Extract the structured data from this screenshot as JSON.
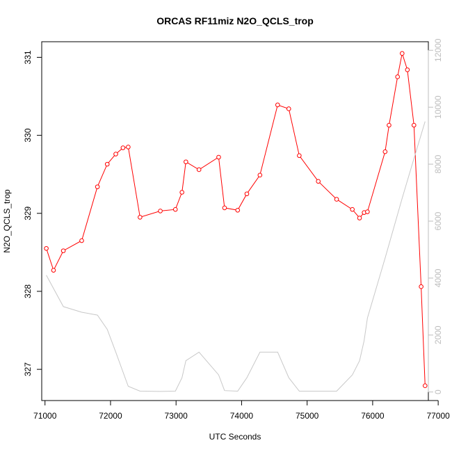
{
  "chart_data": {
    "type": "line",
    "title": "ORCAS RF11miz N2O_QCLS_trop",
    "xlabel": "UTC Seconds",
    "ylabel": "N2O_QCLS_trop",
    "xlim": [
      70950,
      76850
    ],
    "ylim": [
      326.6,
      331.2
    ],
    "y2lim": [
      -300,
      12300
    ],
    "x_ticks": [
      71000,
      72000,
      73000,
      74000,
      75000,
      76000,
      77000
    ],
    "y_ticks": [
      327,
      328,
      329,
      330,
      331
    ],
    "y2_ticks": [
      0,
      2000,
      4000,
      6000,
      8000,
      10000,
      12000
    ],
    "series": [
      {
        "axis": "left",
        "color": "#ff0000",
        "marker": "open-circle",
        "x": [
          71020,
          71130,
          71280,
          71560,
          71800,
          71950,
          72080,
          72190,
          72270,
          72450,
          72760,
          72990,
          73090,
          73150,
          73350,
          73650,
          73740,
          73940,
          74080,
          74280,
          74550,
          74720,
          74880,
          75170,
          75450,
          75690,
          75800,
          75870,
          75920,
          76190,
          76250,
          76380,
          76450,
          76530,
          76630,
          76740,
          76800
        ],
        "values": [
          328.55,
          328.27,
          328.52,
          328.65,
          329.34,
          329.63,
          329.76,
          329.84,
          329.85,
          328.95,
          329.03,
          329.05,
          329.27,
          329.66,
          329.56,
          329.72,
          329.07,
          329.04,
          329.25,
          329.49,
          330.39,
          330.34,
          329.74,
          329.41,
          329.18,
          329.05,
          328.94,
          329.01,
          329.02,
          329.79,
          330.13,
          330.75,
          331.05,
          330.84,
          330.13,
          328.06,
          326.79
        ]
      },
      {
        "axis": "right",
        "color": "#c8c8c8",
        "marker": "none",
        "x": [
          71020,
          71280,
          71560,
          71800,
          71950,
          72080,
          72190,
          72270,
          72450,
          72760,
          72990,
          73090,
          73150,
          73350,
          73650,
          73740,
          73940,
          74080,
          74280,
          74550,
          74720,
          74880,
          75170,
          75450,
          75690,
          75800,
          75870,
          75920,
          76190,
          76450,
          76630,
          76800
        ],
        "values": [
          4100,
          3000,
          2800,
          2700,
          2200,
          1400,
          700,
          200,
          30,
          20,
          30,
          500,
          1100,
          1400,
          600,
          50,
          30,
          500,
          1400,
          1400,
          500,
          30,
          30,
          30,
          600,
          1100,
          1800,
          2600,
          4700,
          6800,
          8200,
          9500
        ]
      }
    ]
  }
}
